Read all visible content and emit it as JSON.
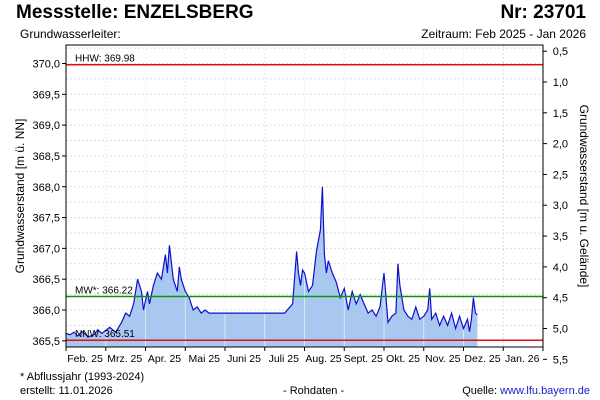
{
  "header": {
    "title": "Messstelle: ENZELSBERG",
    "nr": "Nr: 23701",
    "aquifer_label": "Grundwasserleiter:",
    "period": "Zeitraum: Feb 2025 - Jan 2026"
  },
  "footer": {
    "footnote": "* Abflussjahr (1993-2024)",
    "created": "erstellt:  11.01.2026",
    "rawdata": "- Rohdaten -",
    "source_prefix": "Quelle: ",
    "source_url": "www.lfu.bayern.de"
  },
  "chart_data": {
    "type": "area",
    "ylabel_left": "Grundwasserstand [m ü. NN]",
    "ylabel_right": "Grundwasserstand [m u. Gelände]",
    "ylim": [
      365.4,
      370.3
    ],
    "y_ticks": [
      "370,0",
      "369,5",
      "369,0",
      "368,5",
      "368,0",
      "367,5",
      "367,0",
      "366,5",
      "366,0",
      "365,5"
    ],
    "y_tick_values": [
      370.0,
      369.5,
      369.0,
      368.5,
      368.0,
      367.5,
      367.0,
      366.5,
      366.0,
      365.5
    ],
    "y2_ticks": [
      "0,5",
      "1,0",
      "1,5",
      "2,0",
      "2,5",
      "3,0",
      "3,5",
      "4,0",
      "4,5",
      "5,0",
      "5,5"
    ],
    "y2_tick_values": [
      0.5,
      1.0,
      1.5,
      2.0,
      2.5,
      3.0,
      3.5,
      4.0,
      4.5,
      5.0,
      5.5
    ],
    "ground_level": 370.7,
    "x_ticks": [
      "Feb. 25",
      "Mrz. 25",
      "Apr. 25",
      "Mai 25",
      "Juni 25",
      "Juli 25",
      "Aug. 25",
      "Sept. 25",
      "Okt. 25",
      "Nov. 25",
      "Dez. 25",
      "Jan. 26"
    ],
    "reference_lines": [
      {
        "label": "HHW: 369.98",
        "value": 369.98,
        "color": "#e01010"
      },
      {
        "label": "MW*: 366.22",
        "value": 366.22,
        "color": "#109010"
      },
      {
        "label": "NNW: 365.51",
        "value": 365.51,
        "color": "#e01010"
      }
    ],
    "series": [
      {
        "color": "#1010cc",
        "fill": "#a8c8f0",
        "x_months": [
          0,
          0.1,
          0.2,
          0.3,
          0.4,
          0.5,
          0.55,
          0.7,
          0.8,
          0.9,
          1.0,
          1.1,
          1.25,
          1.4,
          1.5,
          1.6,
          1.7,
          1.8,
          1.9,
          1.95,
          2.0,
          2.05,
          2.1,
          2.2,
          2.3,
          2.4,
          2.5,
          2.55,
          2.6,
          2.7,
          2.8,
          2.85,
          2.9,
          3.0,
          3.1,
          3.2,
          3.3,
          3.4,
          3.5,
          3.6,
          3.8,
          4.0,
          4.5,
          5.0,
          5.5,
          5.7,
          5.8,
          5.85,
          5.9,
          5.95,
          6.0,
          6.1,
          6.2,
          6.3,
          6.4,
          6.45,
          6.5,
          6.55,
          6.6,
          6.7,
          6.8,
          6.9,
          7.0,
          7.1,
          7.2,
          7.3,
          7.4,
          7.5,
          7.6,
          7.7,
          7.8,
          7.9,
          8.0,
          8.1,
          8.2,
          8.3,
          8.35,
          8.4,
          8.5,
          8.6,
          8.7,
          8.8,
          8.9,
          9.0,
          9.1,
          9.15,
          9.2,
          9.3,
          9.4,
          9.5,
          9.6,
          9.7,
          9.8,
          9.9,
          10.0,
          10.1,
          10.15,
          10.2,
          10.25,
          10.3,
          10.35
        ],
        "values": [
          365.62,
          365.6,
          365.64,
          365.58,
          365.65,
          365.6,
          365.56,
          365.6,
          365.68,
          365.62,
          365.67,
          365.72,
          365.64,
          365.8,
          365.95,
          365.9,
          366.1,
          366.5,
          366.3,
          366.0,
          366.15,
          366.3,
          366.1,
          366.4,
          366.6,
          366.5,
          366.9,
          366.6,
          367.05,
          366.5,
          366.3,
          366.7,
          366.5,
          366.3,
          366.2,
          366.0,
          366.05,
          365.95,
          366.0,
          365.95,
          365.95,
          365.95,
          365.95,
          365.95,
          365.95,
          366.1,
          366.95,
          366.6,
          366.4,
          366.65,
          366.6,
          366.3,
          366.4,
          366.95,
          367.3,
          368.0,
          366.9,
          366.6,
          366.8,
          366.6,
          366.45,
          366.2,
          366.35,
          366.0,
          366.3,
          366.1,
          366.25,
          366.1,
          365.95,
          366.0,
          365.9,
          366.05,
          366.6,
          365.8,
          365.9,
          365.95,
          366.75,
          366.4,
          366.0,
          365.9,
          365.85,
          366.05,
          365.85,
          365.9,
          366.0,
          366.35,
          365.85,
          365.95,
          365.75,
          365.9,
          365.75,
          365.95,
          365.7,
          365.9,
          365.7,
          365.85,
          365.65,
          365.85,
          366.2,
          365.95,
          365.92
        ]
      }
    ]
  }
}
